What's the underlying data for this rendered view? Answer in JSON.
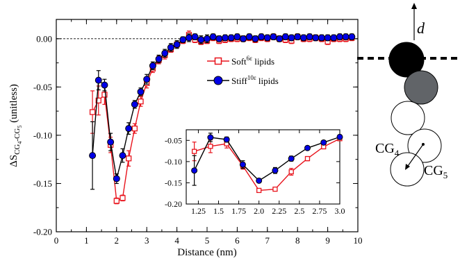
{
  "chart_data": [
    {
      "type": "line",
      "title": "",
      "xlabel": "Distance (nm)",
      "ylabel": {
        "main": "ΔS",
        "sub1": "CG",
        "sub1b": "4",
        "dash": "-CG",
        "sub2": "5",
        "unit": " (unitless)"
      },
      "xlim": [
        0,
        10
      ],
      "ylim": [
        -0.2,
        0.02
      ],
      "xticks": [
        0,
        1,
        2,
        3,
        4,
        5,
        6,
        7,
        8,
        9,
        10
      ],
      "yticks": [
        0.0,
        -0.05,
        -0.1,
        -0.15,
        -0.2
      ],
      "xtick_labels": [
        "0",
        "1",
        "2",
        "3",
        "4",
        "5",
        "6",
        "7",
        "8",
        "9",
        "10"
      ],
      "ytick_labels": [
        "0.00",
        "-0.05",
        "-0.10",
        "-0.15",
        "-0.20"
      ],
      "reference_line": {
        "y": 0.0,
        "style": "dashed"
      },
      "legend_position": "upper-right",
      "series": [
        {
          "name": "Soft",
          "name_sup": "6ε",
          "name_rest": " lipids",
          "color": "#e8121b",
          "marker": "open-square",
          "x": [
            1.2,
            1.4,
            1.6,
            1.8,
            2.0,
            2.2,
            2.4,
            2.6,
            2.8,
            3.0,
            3.2,
            3.4,
            3.6,
            3.8,
            4.0,
            4.2,
            4.4,
            4.6,
            4.8,
            5.0,
            5.2,
            5.4,
            5.6,
            5.8,
            6.0,
            6.2,
            6.4,
            6.6,
            6.8,
            7.0,
            7.2,
            7.4,
            7.6,
            7.8,
            8.0,
            8.2,
            8.4,
            8.6,
            8.8,
            9.0,
            9.2,
            9.4,
            9.6,
            9.8
          ],
          "y": [
            -0.076,
            -0.064,
            -0.058,
            -0.11,
            -0.168,
            -0.165,
            -0.124,
            -0.093,
            -0.065,
            -0.046,
            -0.031,
            -0.022,
            -0.017,
            -0.011,
            -0.006,
            -0.002,
            0.004,
            -0.001,
            -0.003,
            -0.002,
            0.001,
            -0.002,
            -0.001,
            0.0,
            0.0,
            0.0,
            0.001,
            -0.001,
            0.001,
            0.0,
            0.002,
            0.0,
            -0.001,
            -0.002,
            0.002,
            0.0,
            0.0,
            0.001,
            0.0,
            -0.003,
            0.0,
            0.0,
            0.0,
            0.001
          ],
          "err": [
            0.022,
            0.015,
            0.01,
            0.008,
            0.003,
            0.003,
            0.008,
            0.005,
            0.005,
            0.005,
            0.004,
            0.004,
            0.004,
            0.003,
            0.003,
            0.003,
            0.004,
            0.003,
            0.003,
            0.003,
            0.003,
            0.003,
            0.003,
            0.003,
            0.003,
            0.003,
            0.003,
            0.003,
            0.003,
            0.003,
            0.003,
            0.003,
            0.003,
            0.003,
            0.003,
            0.003,
            0.003,
            0.003,
            0.003,
            0.003,
            0.003,
            0.003,
            0.003,
            0.003
          ]
        },
        {
          "name": "Stiff",
          "name_sup": "10ε",
          "name_rest": " lipids",
          "color": "#0000e6",
          "marker": "filled-circle",
          "x": [
            1.2,
            1.4,
            1.6,
            1.8,
            2.0,
            2.2,
            2.4,
            2.6,
            2.8,
            3.0,
            3.2,
            3.4,
            3.6,
            3.8,
            4.0,
            4.2,
            4.4,
            4.6,
            4.8,
            5.0,
            5.2,
            5.4,
            5.6,
            5.8,
            6.0,
            6.2,
            6.4,
            6.6,
            6.8,
            7.0,
            7.2,
            7.4,
            7.6,
            7.8,
            8.0,
            8.2,
            8.4,
            8.6,
            8.8,
            9.0,
            9.2,
            9.4,
            9.6,
            9.8
          ],
          "y": [
            -0.121,
            -0.043,
            -0.048,
            -0.107,
            -0.145,
            -0.121,
            -0.093,
            -0.068,
            -0.055,
            -0.042,
            -0.028,
            -0.021,
            -0.015,
            -0.009,
            -0.006,
            -0.001,
            0.001,
            0.002,
            -0.001,
            0.0,
            0.002,
            0.0,
            0.001,
            0.001,
            0.002,
            0.0,
            0.002,
            0.0,
            0.002,
            0.001,
            0.002,
            0.0,
            0.002,
            0.001,
            0.002,
            0.001,
            0.002,
            0.001,
            0.001,
            0.001,
            0.001,
            0.002,
            0.002,
            0.002
          ],
          "err": [
            0.035,
            0.01,
            0.006,
            0.009,
            0.005,
            0.007,
            0.006,
            0.004,
            0.004,
            0.005,
            0.004,
            0.004,
            0.004,
            0.004,
            0.004,
            0.003,
            0.004,
            0.003,
            0.004,
            0.004,
            0.003,
            0.003,
            0.003,
            0.003,
            0.003,
            0.003,
            0.003,
            0.003,
            0.003,
            0.003,
            0.003,
            0.003,
            0.003,
            0.003,
            0.003,
            0.003,
            0.003,
            0.003,
            0.003,
            0.003,
            0.003,
            0.003,
            0.003,
            0.003
          ]
        }
      ]
    },
    {
      "type": "line",
      "panel": "inset",
      "title": "",
      "xlabel": "",
      "ylabel": "",
      "xlim": [
        1.1,
        3.0
      ],
      "ylim": [
        -0.2,
        -0.025
      ],
      "xticks": [
        1.25,
        1.5,
        1.75,
        2.0,
        2.25,
        2.5,
        2.75,
        3.0
      ],
      "yticks": [
        -0.05,
        -0.1,
        -0.15,
        -0.2
      ],
      "xtick_labels": [
        "1.25",
        "1.5",
        "1.75",
        "2.0",
        "2.25",
        "2.5",
        "2.75",
        "3.0"
      ],
      "ytick_labels": [
        "-0.05",
        "-0.10",
        "-0.15",
        "-0.20"
      ],
      "series": [
        {
          "name": "Soft",
          "color": "#e8121b",
          "marker": "open-square",
          "x": [
            1.2,
            1.4,
            1.6,
            1.8,
            2.0,
            2.2,
            2.4,
            2.6,
            2.8,
            3.0
          ],
          "y": [
            -0.076,
            -0.064,
            -0.058,
            -0.11,
            -0.168,
            -0.165,
            -0.124,
            -0.093,
            -0.065,
            -0.046
          ],
          "err": [
            0.022,
            0.015,
            0.01,
            0.008,
            0.003,
            0.003,
            0.008,
            0.005,
            0.005,
            0.005
          ]
        },
        {
          "name": "Stiff",
          "color": "#0000e6",
          "marker": "filled-circle",
          "x": [
            1.2,
            1.4,
            1.6,
            1.8,
            2.0,
            2.2,
            2.4,
            2.6,
            2.8,
            3.0
          ],
          "y": [
            -0.121,
            -0.043,
            -0.048,
            -0.107,
            -0.145,
            -0.121,
            -0.093,
            -0.068,
            -0.055,
            -0.042
          ],
          "err": [
            0.035,
            0.01,
            0.006,
            0.009,
            0.005,
            0.007,
            0.006,
            0.004,
            0.004,
            0.005
          ]
        }
      ]
    }
  ],
  "schematic": {
    "axis_label": "d",
    "label_cg4": "CG",
    "label_cg4_sub": "4",
    "label_cg5": "CG",
    "label_cg5_sub": "5",
    "colors": {
      "bead1": "#000000",
      "bead2": "#616468",
      "bead_open": "#ffffff"
    }
  }
}
